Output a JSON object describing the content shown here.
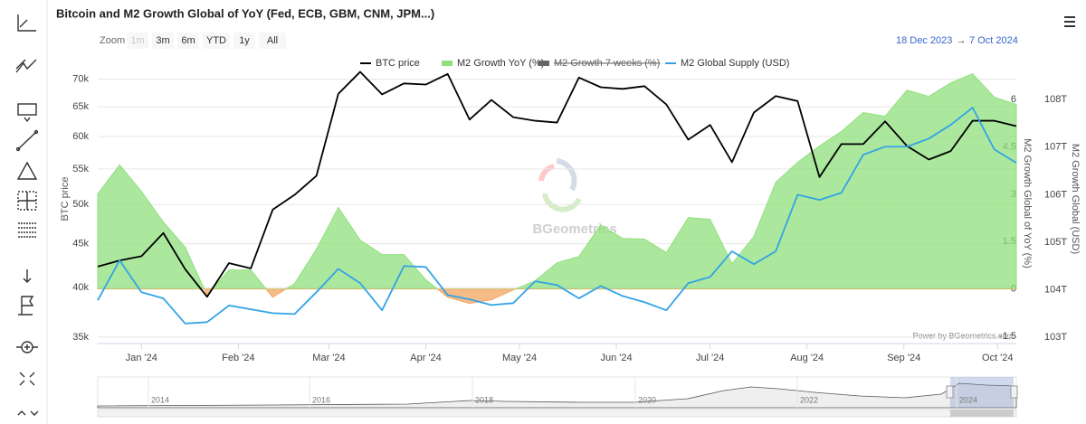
{
  "chart_data": {
    "type": "line",
    "title": "Bitcoin and M2 Growth Global of YoY (Fed, ECB, GBM, CNM, JPM...)",
    "range_selector": {
      "label": "Zoom",
      "buttons": [
        {
          "text": "1m",
          "enabled": false
        },
        {
          "text": "3m",
          "enabled": true
        },
        {
          "text": "6m",
          "enabled": true
        },
        {
          "text": "YTD",
          "enabled": true
        },
        {
          "text": "1y",
          "enabled": true
        },
        {
          "text": "All",
          "enabled": true
        }
      ]
    },
    "range_start": "18 Dec 2023",
    "range_arrow": "→",
    "range_end": "7 Oct 2024",
    "watermark": "BGeometrics",
    "credits": "Power by BGeometrics.com",
    "y_label": "BTC price",
    "y2_label": "M2 Growth Global of YoY (%)",
    "y3_label": "M2 Growth Global (USD)",
    "x": [
      "2023-12-18",
      "2023-12-25",
      "2024-01-01",
      "2024-01-08",
      "2024-01-15",
      "2024-01-22",
      "2024-01-29",
      "2024-02-05",
      "2024-02-12",
      "2024-02-19",
      "2024-02-26",
      "2024-03-04",
      "2024-03-11",
      "2024-03-18",
      "2024-03-25",
      "2024-04-01",
      "2024-04-08",
      "2024-04-15",
      "2024-04-22",
      "2024-04-29",
      "2024-05-06",
      "2024-05-13",
      "2024-05-20",
      "2024-05-27",
      "2024-06-03",
      "2024-06-10",
      "2024-06-17",
      "2024-06-24",
      "2024-07-01",
      "2024-07-08",
      "2024-07-15",
      "2024-07-22",
      "2024-07-29",
      "2024-08-05",
      "2024-08-12",
      "2024-08-19",
      "2024-08-26",
      "2024-09-02",
      "2024-09-09",
      "2024-09-16",
      "2024-09-23",
      "2024-09-30",
      "2024-10-07"
    ],
    "xlim": [
      "2023-12-18",
      "2024-10-07"
    ],
    "xticks": [
      {
        "value": "2024-01-01",
        "label": "Jan '24"
      },
      {
        "value": "2024-02-01",
        "label": "Feb '24"
      },
      {
        "value": "2024-03-01",
        "label": "Mar '24"
      },
      {
        "value": "2024-04-01",
        "label": "Apr '24"
      },
      {
        "value": "2024-05-01",
        "label": "May '24"
      },
      {
        "value": "2024-06-01",
        "label": "Jun '24"
      },
      {
        "value": "2024-07-01",
        "label": "Jul '24"
      },
      {
        "value": "2024-08-01",
        "label": "Aug '24"
      },
      {
        "value": "2024-09-01",
        "label": "Sep '24"
      },
      {
        "value": "2024-10-01",
        "label": "Oct '24"
      }
    ],
    "ylim": [
      34400,
      72000
    ],
    "y_log": true,
    "yticks": [
      {
        "value": 35000,
        "label": "35k"
      },
      {
        "value": 40000,
        "label": "40k"
      },
      {
        "value": 45000,
        "label": "45k"
      },
      {
        "value": 50000,
        "label": "50k"
      },
      {
        "value": 55000,
        "label": "55k"
      },
      {
        "value": 60000,
        "label": "60k"
      },
      {
        "value": 65000,
        "label": "65k"
      },
      {
        "value": 70000,
        "label": "70k"
      }
    ],
    "y2lim": [
      -1.73,
      6.98
    ],
    "y2ticks": [
      -1.5,
      0,
      1.5,
      3,
      4.5,
      6
    ],
    "y3lim": [
      102.87,
      108.65
    ],
    "y3ticks": [
      {
        "value": 103,
        "label": "103T"
      },
      {
        "value": 104,
        "label": "104T"
      },
      {
        "value": 105,
        "label": "105T"
      },
      {
        "value": 106,
        "label": "106T"
      },
      {
        "value": 107,
        "label": "107T"
      },
      {
        "value": 108,
        "label": "108T"
      }
    ],
    "grid": true,
    "legend": "top",
    "series": [
      {
        "name": "M2 Growth YoY (%)",
        "type": "area",
        "axis": "y2",
        "color": "#8fe07c",
        "negative_color": "#f4a460",
        "values": [
          3.01,
          3.93,
          3.09,
          2.12,
          1.32,
          -0.2,
          0.6,
          0.6,
          -0.26,
          0.17,
          1.26,
          2.58,
          1.55,
          1.09,
          1.09,
          0.29,
          -0.26,
          -0.46,
          -0.34,
          -0.03,
          0.26,
          0.83,
          1.03,
          2.03,
          1.6,
          1.58,
          1.15,
          2.26,
          2.21,
          0.8,
          1.66,
          3.38,
          4.01,
          4.53,
          4.99,
          5.59,
          5.47,
          6.3,
          6.1,
          6.53,
          6.82,
          6.07,
          5.85
        ]
      },
      {
        "name": "M2 Growth 7 weeks (%)",
        "type": "area",
        "axis": "y2",
        "color": "#666666",
        "visible": false
      },
      {
        "name": "BTC price",
        "type": "line",
        "axis": "y",
        "color": "#000000",
        "values": [
          42300,
          43000,
          43500,
          46300,
          42000,
          39000,
          42700,
          42100,
          49300,
          51300,
          54000,
          67300,
          71400,
          67200,
          69200,
          69000,
          71000,
          62800,
          66200,
          63200,
          62600,
          62300,
          70300,
          68500,
          68200,
          68700,
          65400,
          59500,
          61900,
          56000,
          64000,
          66900,
          66000,
          53800,
          58800,
          58800,
          62500,
          58500,
          56400,
          57700,
          62600,
          62600,
          61700
        ]
      },
      {
        "name": "M2 Global Supply (USD)",
        "type": "line",
        "axis": "y3",
        "color": "#33a3e6",
        "values": [
          103.78,
          104.62,
          103.95,
          103.82,
          103.29,
          103.32,
          103.67,
          103.59,
          103.51,
          103.49,
          103.95,
          104.44,
          104.14,
          103.57,
          104.5,
          104.48,
          103.89,
          103.8,
          103.68,
          103.72,
          104.18,
          104.1,
          103.82,
          104.08,
          103.87,
          103.74,
          103.57,
          104.14,
          104.27,
          104.81,
          104.54,
          104.81,
          106.0,
          105.89,
          106.04,
          106.84,
          107.01,
          107.01,
          107.18,
          107.47,
          107.83,
          106.95,
          106.67
        ]
      }
    ],
    "legend_order": [
      2,
      0,
      1,
      3
    ],
    "navigator": {
      "labels": [
        "2014",
        "2016",
        "2018",
        "2020",
        "2022",
        "2024"
      ]
    }
  }
}
